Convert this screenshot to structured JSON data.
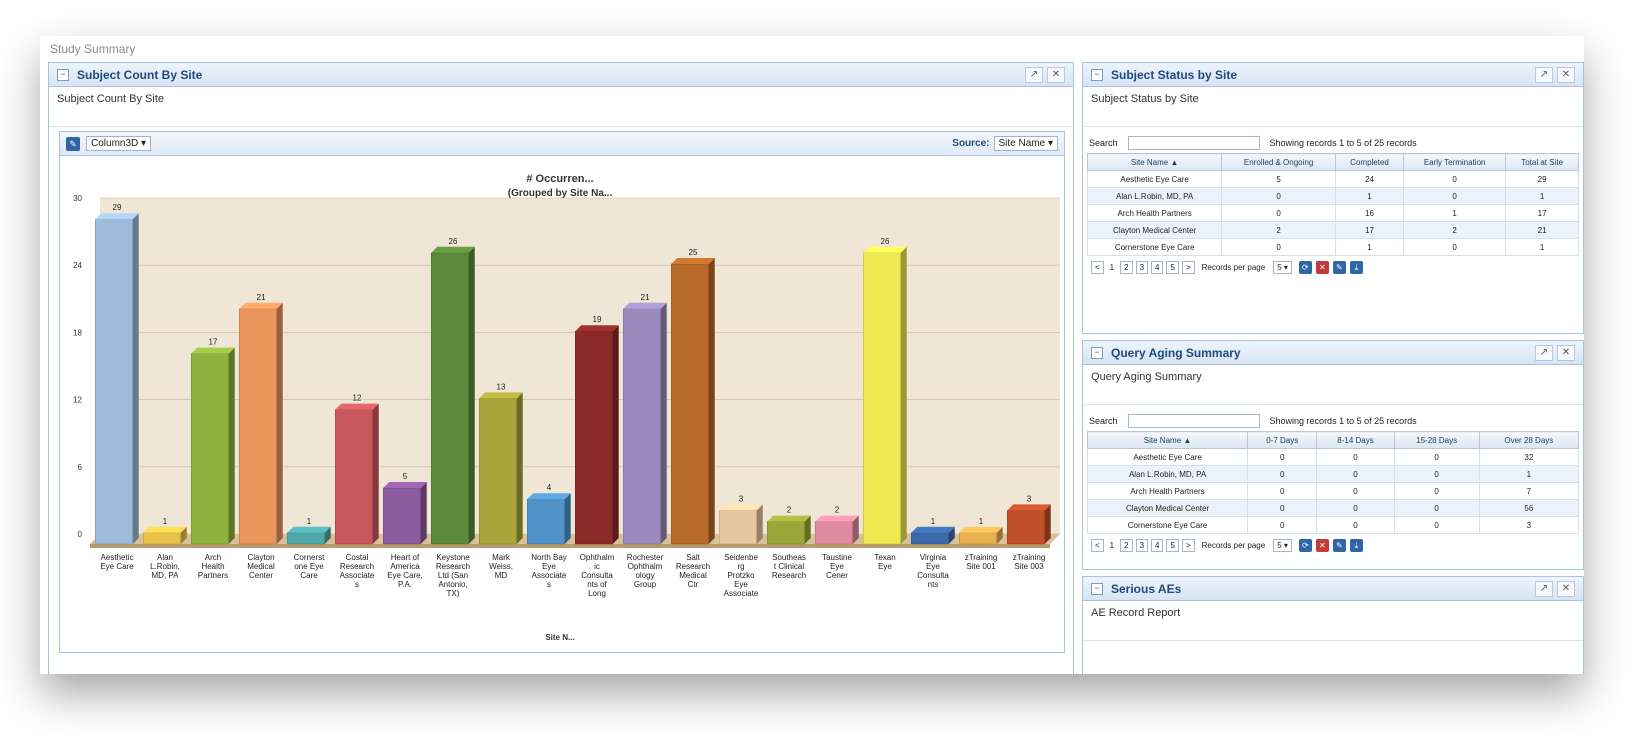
{
  "study_title": "Study Summary",
  "left_panel": {
    "title": "Subject Count By Site",
    "subtitle": "Subject Count By Site",
    "chart_type_select": "Column3D ▾",
    "source_label": "Source:",
    "source_select": "Site Name ▾",
    "icons": [
      "pin-icon",
      "close-icon"
    ]
  },
  "chart_data": {
    "type": "bar",
    "title": "# Occurren...",
    "subtitle": "(Grouped by Site Na...",
    "xlabel": "Site N...",
    "ylabel": "",
    "ylim": [
      0,
      30
    ],
    "yticks": [
      "0",
      "6",
      "12",
      "18",
      "24",
      "30"
    ],
    "categories": [
      [
        "Aesthetic",
        "Eye Care"
      ],
      [
        "Alan",
        "L.Robin,",
        "MD, PA"
      ],
      [
        "Arch",
        "Health",
        "Partners"
      ],
      [
        "Clayton",
        "Medical",
        "Center"
      ],
      [
        "Cornerst",
        "one Eye",
        "Care"
      ],
      [
        "Costal",
        "Research",
        "Associate",
        "s"
      ],
      [
        "Heart of",
        "America",
        "Eye Care,",
        "P.A."
      ],
      [
        "Keystone",
        "Research",
        "Ltd (San",
        "Antonio,",
        "TX)"
      ],
      [
        "Mark",
        "Weiss,",
        "MD"
      ],
      [
        "North Bay",
        "Eye",
        "Associate",
        "s"
      ],
      [
        "Ophthalm",
        "ic",
        "Consulta",
        "nts of",
        "Long"
      ],
      [
        "Rochester",
        "Ophthalm",
        "ology",
        "Group"
      ],
      [
        "Salt",
        "Research",
        "Medical",
        "Ctr"
      ],
      [
        "Seidenbe",
        "rg",
        "Protzko",
        "Eye",
        "Associate"
      ],
      [
        "Southeas",
        "t Clinical",
        "Research"
      ],
      [
        "Taustine",
        "Eye",
        "Cener"
      ],
      [
        "Texan",
        "Eye"
      ],
      [
        "Virginia",
        "Eye",
        "Consulta",
        "nts"
      ],
      [
        "zTraining",
        "Site 001"
      ],
      [
        "zTraining",
        "Site 003"
      ]
    ],
    "values": [
      29,
      1,
      17,
      21,
      1,
      12,
      5,
      26,
      13,
      4,
      19,
      21,
      25,
      3,
      2,
      2,
      26,
      1,
      1,
      3
    ],
    "colors": [
      "#9dbbdb",
      "#e8c24a",
      "#8fb23f",
      "#e9955c",
      "#4fa7a9",
      "#c9585e",
      "#8d5a9e",
      "#5a8a3a",
      "#a9a53a",
      "#4f93c9",
      "#8c2a2a",
      "#9a8bbd",
      "#b86a2a",
      "#e7c7a0",
      "#9aa83a",
      "#e08aa0",
      "#f0e850",
      "#3a6aaa",
      "#e8b050",
      "#c0502a"
    ]
  },
  "status_panel": {
    "title": "Subject Status by Site",
    "subtitle": "Subject Status by Site",
    "search_label": "Search",
    "showing": "Showing records 1 to 5 of 25 records",
    "headers": [
      "Site Name",
      "Enrolled & Ongoing",
      "Completed",
      "Early Termination",
      "Total at Site"
    ],
    "rows": [
      [
        "Aesthetic Eye Care",
        "5",
        "24",
        "0",
        "29"
      ],
      [
        "Alan L.Robin, MD, PA",
        "0",
        "1",
        "0",
        "1"
      ],
      [
        "Arch Health Partners",
        "0",
        "16",
        "1",
        "17"
      ],
      [
        "Clayton Medical Center",
        "2",
        "17",
        "2",
        "21"
      ],
      [
        "Cornerstone Eye Care",
        "0",
        "1",
        "0",
        "1"
      ]
    ],
    "pager": [
      "<",
      "1",
      "2",
      "3",
      "4",
      "5",
      ">"
    ],
    "records_per_page": "Records per page",
    "per_page_value": "5 ▾"
  },
  "query_panel": {
    "title": "Query Aging Summary",
    "subtitle": "Query Aging Summary",
    "search_label": "Search",
    "showing": "Showing records 1 to 5 of 25 records",
    "headers": [
      "Site Name",
      "0-7 Days",
      "8-14 Days",
      "15-28 Days",
      "Over 28 Days"
    ],
    "rows": [
      [
        "Aesthetic Eye Care",
        "0",
        "0",
        "0",
        "32"
      ],
      [
        "Alan L.Robin, MD, PA",
        "0",
        "0",
        "0",
        "1"
      ],
      [
        "Arch Health Partners",
        "0",
        "0",
        "0",
        "7"
      ],
      [
        "Clayton Medical Center",
        "0",
        "0",
        "0",
        "56"
      ],
      [
        "Cornerstone Eye Care",
        "0",
        "0",
        "0",
        "3"
      ]
    ],
    "pager": [
      "<",
      "1",
      "2",
      "3",
      "4",
      "5",
      ">"
    ],
    "records_per_page": "Records per page",
    "per_page_value": "5 ▾"
  },
  "ae_panel": {
    "title": "Serious AEs",
    "subtitle": "AE Record Report"
  },
  "colors": {
    "header_text": "#1f4a7f",
    "border": "#a9c3df",
    "chart_bg": "#efe6d6"
  }
}
